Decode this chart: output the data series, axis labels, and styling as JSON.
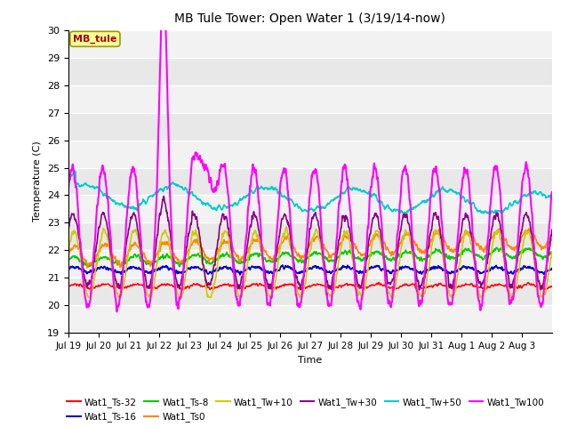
{
  "title": "MB Tule Tower: Open Water 1 (3/19/14-now)",
  "xlabel": "Time",
  "ylabel": "Temperature (C)",
  "ylim": [
    19.0,
    30.0
  ],
  "yticks": [
    19.0,
    20.0,
    21.0,
    22.0,
    23.0,
    24.0,
    25.0,
    26.0,
    27.0,
    28.0,
    29.0,
    30.0
  ],
  "background_color": "#e8e8e8",
  "series": [
    {
      "label": "Wat1_Ts-32",
      "color": "#ff0000",
      "lw": 1.0
    },
    {
      "label": "Wat1_Ts-16",
      "color": "#0000cc",
      "lw": 1.2
    },
    {
      "label": "Wat1_Ts-8",
      "color": "#00cc00",
      "lw": 1.2
    },
    {
      "label": "Wat1_Ts0",
      "color": "#ff8800",
      "lw": 1.2
    },
    {
      "label": "Wat1_Tw+10",
      "color": "#cccc00",
      "lw": 1.2
    },
    {
      "label": "Wat1_Tw+30",
      "color": "#880088",
      "lw": 1.2
    },
    {
      "label": "Wat1_Tw+50",
      "color": "#00cccc",
      "lw": 1.2
    },
    {
      "label": "Wat1_Tw100",
      "color": "#ff00ff",
      "lw": 1.5
    }
  ],
  "day_labels": [
    "Jul 19",
    "Jul 20",
    "Jul 21",
    "Jul 22",
    "Jul 23",
    "Jul 24",
    "Jul 25",
    "Jul 26",
    "Jul 27",
    "Jul 28",
    "Jul 29",
    "Jul 30",
    "Jul 31",
    "Aug 1",
    "Aug 2",
    "Aug 3"
  ],
  "figsize": [
    6.4,
    4.8
  ],
  "dpi": 100
}
